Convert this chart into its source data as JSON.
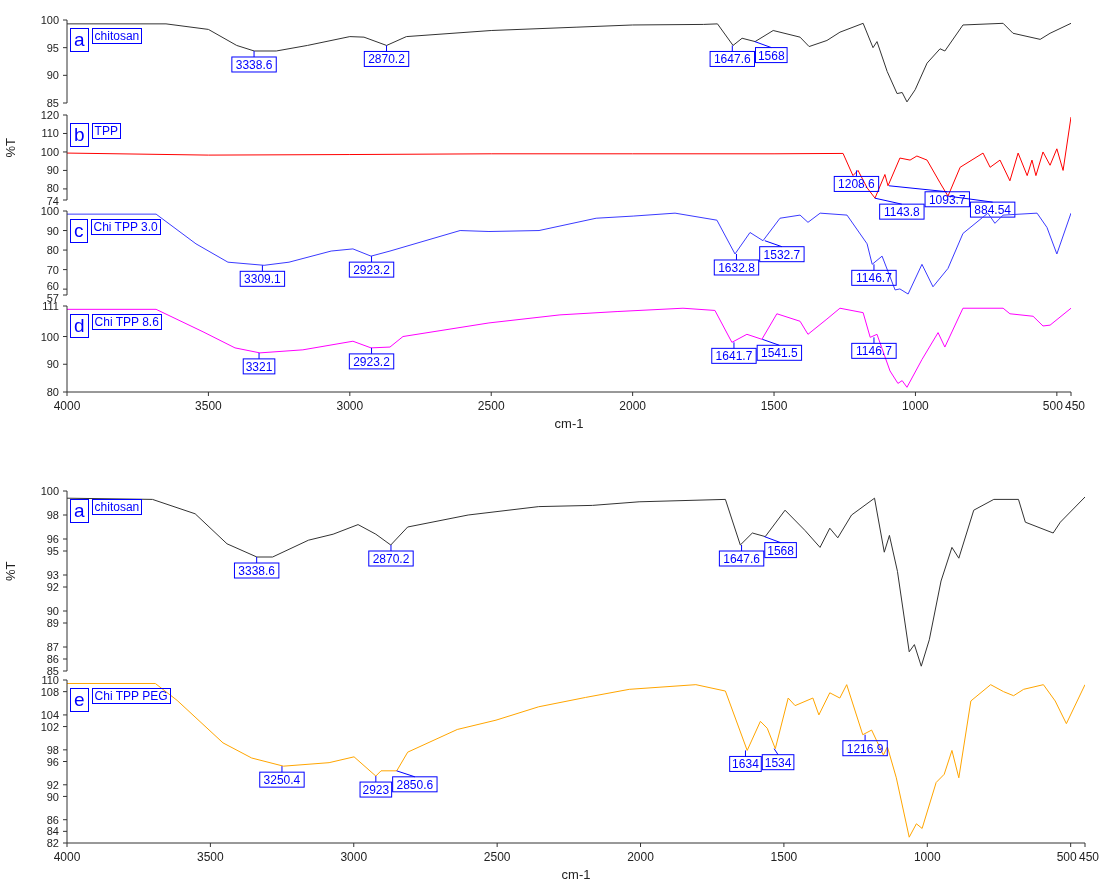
{
  "chart_data": [
    {
      "type": "line",
      "tick_labels": "y",
      "xlim": [
        4000,
        450
      ],
      "ylim": [
        85,
        100
      ],
      "yticks": [
        85,
        90,
        95,
        100
      ],
      "series": [
        {
          "name": "chitosan",
          "color": "#333333",
          "x": [
            4000,
            3650,
            3500,
            3400,
            3338,
            3260,
            3150,
            3000,
            2950,
            2870,
            2800,
            2500,
            2200,
            2000,
            1750,
            1700,
            1645,
            1613,
            1567,
            1503,
            1408,
            1376,
            1313,
            1267,
            1185,
            1150,
            1136,
            1100,
            1065,
            1047,
            1030,
            1001,
            959,
            913,
            896,
            832,
            690,
            655,
            559,
            524,
            450
          ],
          "values": [
            99.3,
            99.3,
            98.3,
            95.4,
            94.4,
            94.4,
            95.4,
            97.0,
            96.9,
            95.4,
            97.0,
            98.1,
            98.7,
            99.1,
            99.2,
            99.3,
            95.4,
            96.7,
            96.1,
            98.1,
            96.9,
            95.2,
            96.3,
            97.8,
            99.4,
            95.0,
            96.1,
            90.7,
            86.7,
            86.9,
            85.2,
            87.4,
            92.2,
            94.8,
            94.4,
            99.1,
            99.4,
            97.6,
            96.5,
            97.6,
            99.4
          ]
        }
      ],
      "annotations": [
        "a",
        {
          "text": "3338.6",
          "x": 3338.6,
          "y": 94.4
        },
        {
          "text": "2870.2",
          "x": 2870.2,
          "y": 95.4
        },
        {
          "text": "1647.6",
          "x": 1647.6,
          "y": 95.4
        },
        {
          "text": "1568",
          "x": 1568,
          "y": 96.1
        }
      ]
    },
    {
      "type": "line",
      "tick_labels": "y",
      "ylabel": "%T",
      "xlim": [
        4000,
        450
      ],
      "ylim": [
        74,
        120
      ],
      "yticks": [
        74,
        80,
        90,
        100,
        110,
        120
      ],
      "series": [
        {
          "name": "TPP",
          "color": "#ff0000",
          "x": [
            4000,
            3500,
            3000,
            2500,
            2000,
            1500,
            1256,
            1221,
            1203,
            1171,
            1143,
            1108,
            1097,
            1055,
            1019,
            995,
            959,
            913,
            885,
            842,
            761,
            736,
            701,
            666,
            637,
            605,
            588,
            574,
            549,
            524,
            500,
            478,
            450
          ],
          "values": [
            99.4,
            98.3,
            98.6,
            99,
            99,
            99,
            99.2,
            87.2,
            90,
            80.6,
            75,
            87.8,
            81.7,
            96.7,
            95.6,
            97.8,
            95.6,
            83.3,
            76.1,
            91.7,
            99.4,
            91.7,
            95.6,
            84.4,
            99.4,
            87.2,
            95.6,
            87.2,
            100,
            92.8,
            101.7,
            90,
            118.9
          ]
        }
      ],
      "annotations": [
        "b",
        {
          "text": "1208.6",
          "x": 1208.6,
          "y": 90
        },
        {
          "text": "1143.8",
          "x": 1143.8,
          "y": 75
        },
        {
          "text": "1093.7",
          "x": 1093.7,
          "y": 81.7
        },
        {
          "text": "884.54",
          "x": 884.54,
          "y": 76.1
        }
      ]
    },
    {
      "type": "line",
      "tick_labels": "y",
      "xlim": [
        4000,
        450
      ],
      "ylim": [
        57,
        100
      ],
      "yticks": [
        57,
        60,
        70,
        80,
        90,
        100
      ],
      "series": [
        {
          "name": "Chi TPP 3.0",
          "color": "#3a3aff",
          "x": [
            4000,
            3685,
            3544,
            3431,
            3303,
            3215,
            3066,
            2989,
            2925,
            2858,
            2610,
            2508,
            2331,
            2129,
            1998,
            1850,
            1702,
            1638,
            1585,
            1539,
            1479,
            1408,
            1380,
            1337,
            1242,
            1171,
            1153,
            1118,
            1072,
            1055,
            1026,
            977,
            938,
            885,
            832,
            744,
            719,
            690,
            570,
            535,
            500,
            450
          ],
          "values": [
            98.4,
            98.4,
            83.2,
            73.8,
            72.2,
            73.8,
            79.5,
            80.6,
            76.9,
            79.5,
            90,
            89.5,
            90,
            96.3,
            97.4,
            98.9,
            95.3,
            78,
            89,
            84.8,
            96.3,
            97.9,
            94.2,
            98.9,
            97.9,
            83.2,
            72.7,
            76.9,
            59.6,
            60.1,
            57.5,
            72.7,
            61.2,
            70.6,
            88.5,
            98.9,
            93.7,
            97.9,
            98.9,
            91.6,
            78,
            98.9
          ]
        }
      ],
      "annotations": [
        "c",
        {
          "text": "3309.1",
          "x": 3309.1,
          "y": 72.2
        },
        {
          "text": "2923.2",
          "x": 2923.2,
          "y": 76.9
        },
        {
          "text": "1632.8",
          "x": 1632.8,
          "y": 78
        },
        {
          "text": "1532.7",
          "x": 1532.7,
          "y": 84.8
        },
        {
          "text": "1146.7",
          "x": 1146.7,
          "y": 72.7
        }
      ]
    },
    {
      "type": "line",
      "xlabel": "cm-1",
      "xlim": [
        4000,
        450
      ],
      "xticks": [
        4000,
        3500,
        3000,
        2500,
        2000,
        1500,
        1000,
        500,
        450
      ],
      "ylim": [
        80,
        111
      ],
      "yticks": [
        80,
        90,
        100,
        111
      ],
      "series": [
        {
          "name": "Chi TPP 8.6",
          "color": "#ff00ff",
          "x": [
            4000,
            3685,
            3519,
            3406,
            3318,
            3166,
            2989,
            2925,
            2858,
            2812,
            2508,
            2257,
            2055,
            1822,
            1709,
            1649,
            1596,
            1543,
            1490,
            1408,
            1380,
            1313,
            1267,
            1185,
            1160,
            1136,
            1090,
            1062,
            1047,
            1030,
            977,
            920,
            896,
            832,
            690,
            666,
            584,
            549,
            524,
            450
          ],
          "values": [
            109.8,
            109.8,
            101.7,
            95.9,
            94.1,
            95.2,
            98.3,
            95.9,
            96.2,
            100,
            104.9,
            107.8,
            109,
            110.2,
            109.4,
            97.9,
            100.8,
            99,
            108.2,
            105.5,
            100.8,
            106.3,
            110.2,
            108.6,
            99.7,
            100.8,
            87.6,
            83.1,
            84.1,
            81.7,
            91.7,
            101.4,
            96.2,
            110.2,
            110.2,
            108.2,
            107.3,
            103.8,
            104.1,
            110.2
          ]
        }
      ],
      "annotations": [
        "d",
        {
          "text": "3321",
          "x": 3321,
          "y": 94.1
        },
        {
          "text": "2923.2",
          "x": 2923.2,
          "y": 95.9
        },
        {
          "text": "1641.7",
          "x": 1641.7,
          "y": 97.9
        },
        {
          "text": "1541.5",
          "x": 1541.5,
          "y": 99
        },
        {
          "text": "1146.7",
          "x": 1146.7,
          "y": 99.7
        }
      ]
    },
    {
      "type": "line",
      "tick_labels": "y",
      "ylabel": "%T",
      "xlim": [
        4000,
        450
      ],
      "ylim": [
        85,
        100
      ],
      "yticks": [
        85,
        86,
        87,
        89,
        90,
        92,
        93,
        95,
        96,
        98,
        100
      ],
      "series": [
        {
          "name": "chitosan",
          "color": "#333333",
          "x": [
            4000,
            3702,
            3553,
            3442,
            3338,
            3283,
            3158,
            3072,
            2985,
            2923,
            2871,
            2812,
            2601,
            2355,
            2168,
            2005,
            1704,
            1652,
            1610,
            1565,
            1496,
            1426,
            1374,
            1340,
            1312,
            1264,
            1184,
            1150,
            1132,
            1104,
            1063,
            1045,
            1021,
            993,
            952,
            914,
            890,
            838,
            768,
            682,
            658,
            561,
            536,
            450
          ],
          "values": [
            99.4,
            99.3,
            98.1,
            95.6,
            94.5,
            94.5,
            95.9,
            96.4,
            97.2,
            96.4,
            95.5,
            97,
            98,
            98.7,
            98.8,
            99.1,
            99.3,
            95.5,
            96.5,
            96.2,
            98.4,
            96.7,
            95.3,
            96.9,
            96.1,
            98,
            99.4,
            94.9,
            96.3,
            93.3,
            86.6,
            87.2,
            85.4,
            87.6,
            92.5,
            95.3,
            94.4,
            98.4,
            99.3,
            99.3,
            97.4,
            96.5,
            97.4,
            99.5
          ]
        }
      ],
      "annotations": [
        "a",
        {
          "text": "3338.6",
          "x": 3338.6,
          "y": 94.5
        },
        {
          "text": "2870.2",
          "x": 2870.2,
          "y": 95.5
        },
        {
          "text": "1647.6",
          "x": 1647.6,
          "y": 95.5
        },
        {
          "text": "1568",
          "x": 1568,
          "y": 96.2
        }
      ]
    },
    {
      "type": "line",
      "xlabel": "cm-1",
      "xlim": [
        4000,
        450
      ],
      "xticks": [
        4000,
        3500,
        3000,
        2500,
        2000,
        1500,
        1000,
        500,
        450
      ],
      "ylim": [
        82,
        110
      ],
      "yticks": [
        82,
        84,
        86,
        90,
        92,
        96,
        98,
        102,
        104,
        108,
        110
      ],
      "series": [
        {
          "name": "Chi TPP PEG",
          "color": "#ffa500",
          "x": [
            4000,
            3692,
            3616,
            3456,
            3356,
            3245,
            3086,
            2999,
            2923,
            2905,
            2850,
            2812,
            2639,
            2504,
            2355,
            2192,
            2039,
            1807,
            1704,
            1628,
            1582,
            1558,
            1530,
            1485,
            1461,
            1399,
            1378,
            1340,
            1305,
            1281,
            1225,
            1194,
            1153,
            1139,
            1108,
            1063,
            1038,
            1018,
            969,
            941,
            914,
            890,
            848,
            779,
            734,
            699,
            664,
            595,
            554,
            515,
            450
          ],
          "values": [
            109.4,
            109.4,
            106.5,
            99.2,
            96.6,
            95.2,
            95.8,
            96.8,
            93.5,
            94.4,
            94.4,
            97.6,
            101.5,
            103.1,
            105.4,
            107,
            108.4,
            109.2,
            108.1,
            97.9,
            102.9,
            101.7,
            98.2,
            106.9,
            105.6,
            106.9,
            104,
            107.8,
            106.9,
            109.2,
            100.6,
            101.4,
            97.1,
            98.5,
            93.2,
            83,
            85.3,
            84.5,
            92.4,
            93.8,
            97.9,
            93.2,
            106.4,
            109.2,
            108,
            107.3,
            108.4,
            109.2,
            106.4,
            102.5,
            109.2
          ]
        }
      ],
      "annotations": [
        "e",
        {
          "text": "3250.4",
          "x": 3250.4,
          "y": 95.2
        },
        {
          "text": "2923",
          "x": 2923,
          "y": 93.5
        },
        {
          "text": "2850.6",
          "x": 2850.6,
          "y": 94.4
        },
        {
          "text": "1634",
          "x": 1634,
          "y": 97.9
        },
        {
          "text": "1534",
          "x": 1534,
          "y": 98.2
        },
        {
          "text": "1216.9",
          "x": 1216.9,
          "y": 100.6
        }
      ]
    }
  ]
}
